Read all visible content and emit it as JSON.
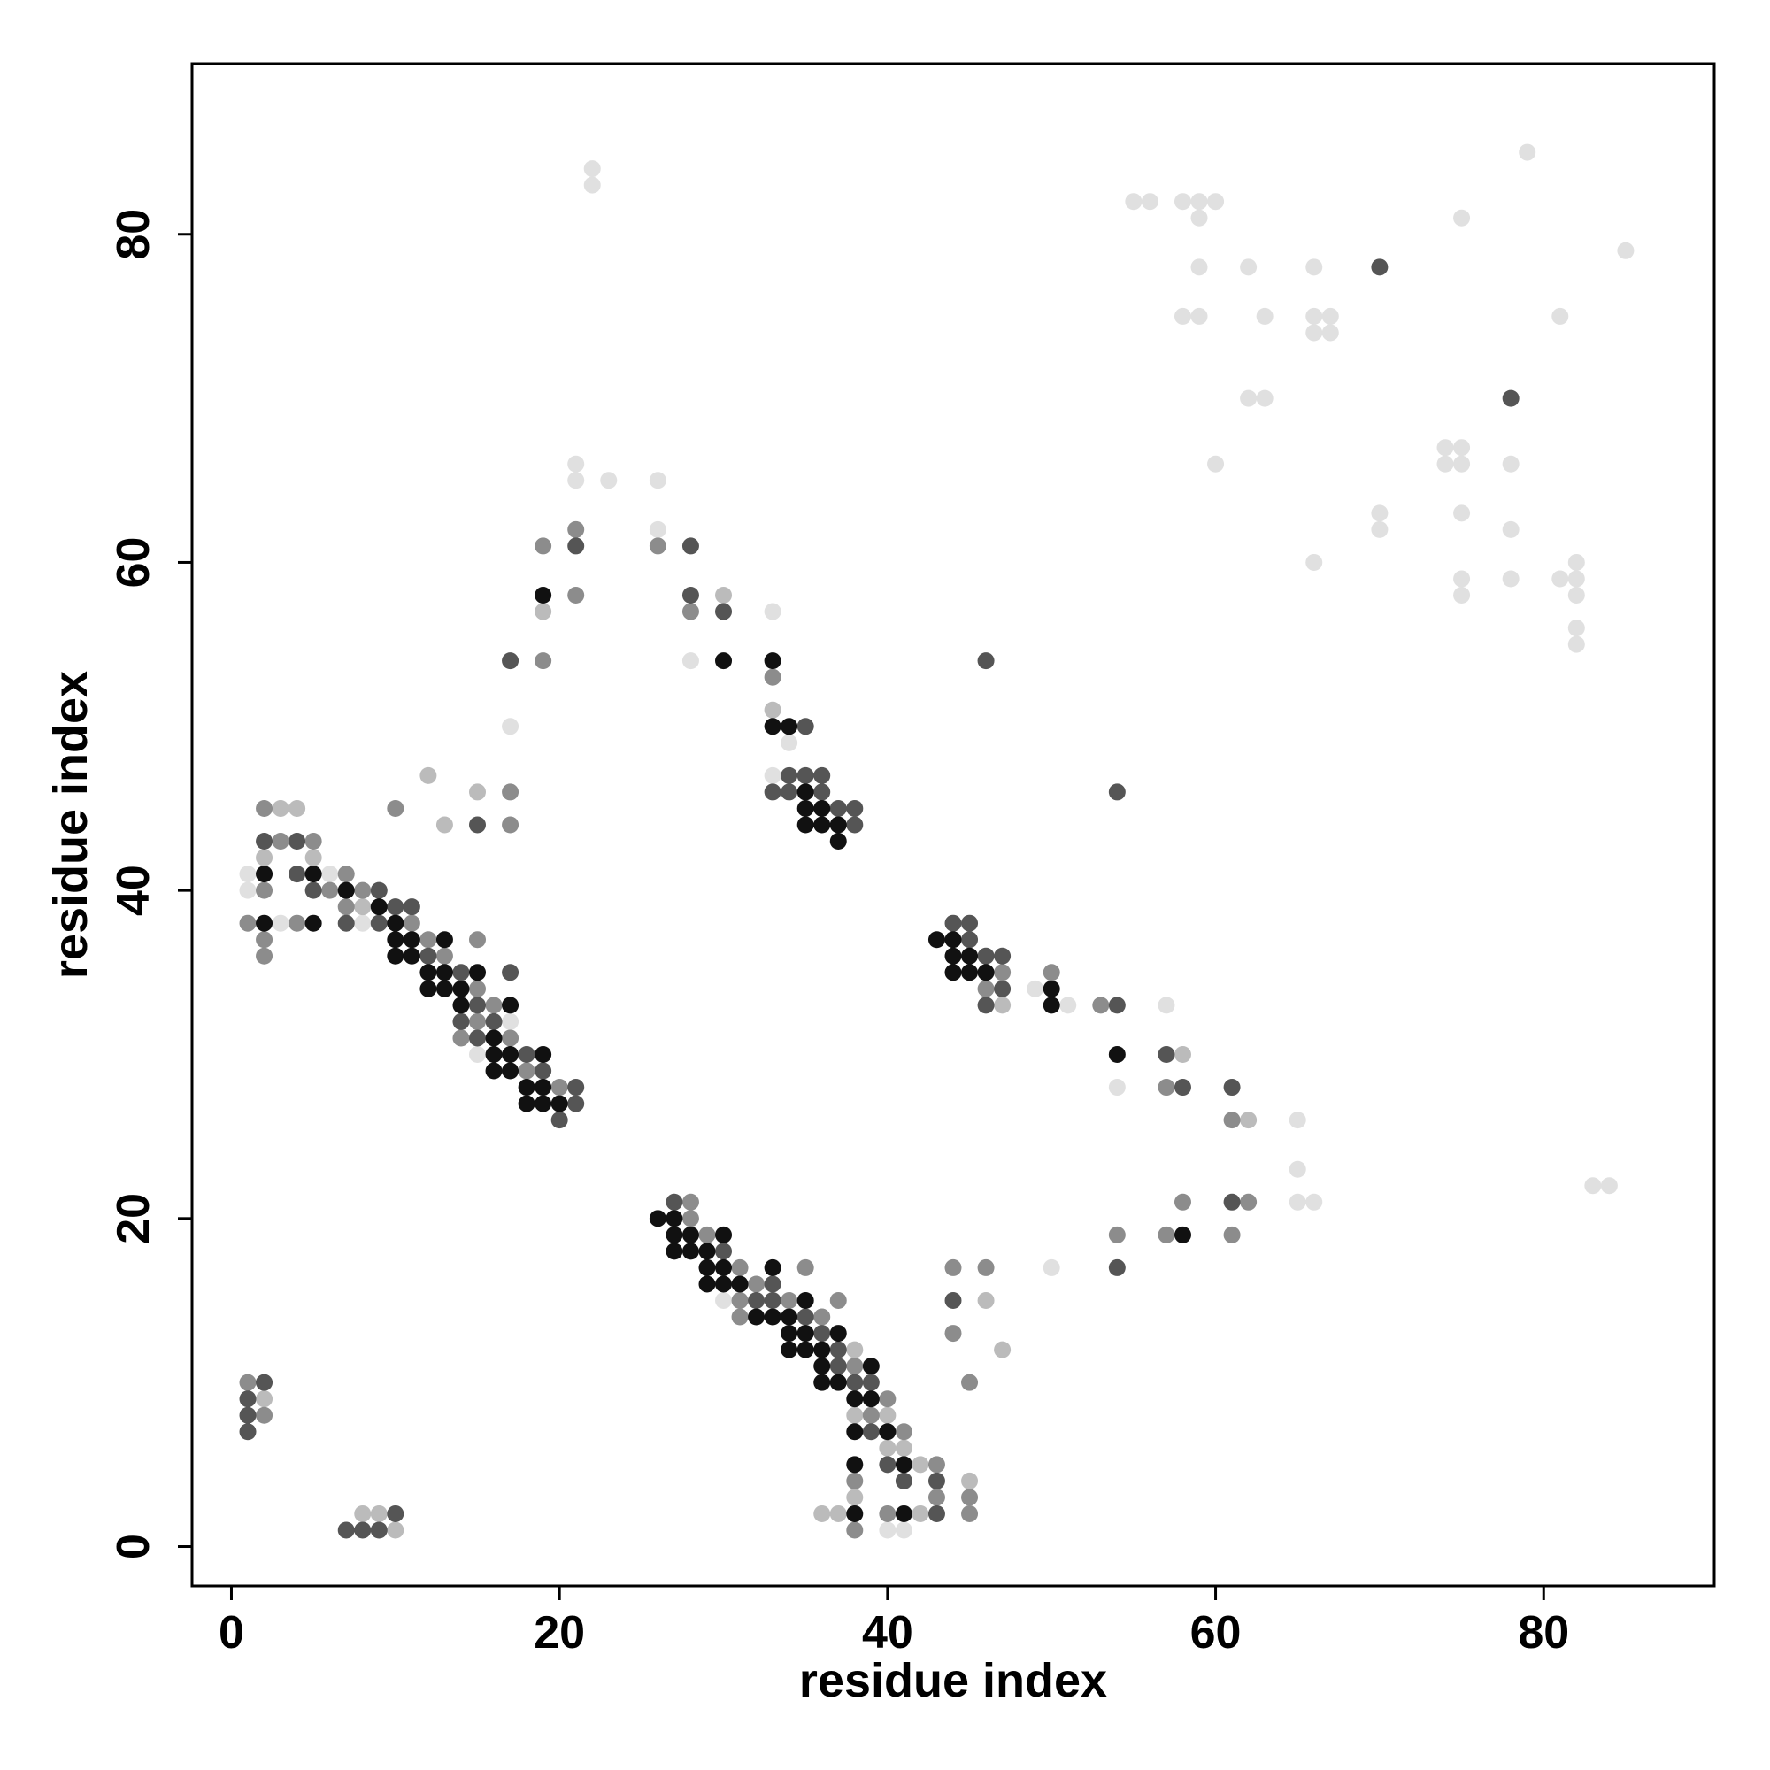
{
  "chart_data": {
    "type": "scatter",
    "xlabel": "residue index",
    "ylabel": "residue index",
    "xlim": [
      -2.4,
      90.4
    ],
    "ylim": [
      -2.4,
      90.4
    ],
    "xticks": [
      0,
      20,
      40,
      60,
      80
    ],
    "yticks": [
      0,
      20,
      40,
      60,
      80
    ],
    "series": [
      {
        "color": "#e0e0e0",
        "x": [
          22,
          22,
          79,
          55,
          56,
          58,
          59,
          60,
          59,
          75,
          85,
          59,
          62,
          66,
          58,
          59,
          63,
          66,
          67,
          66,
          67,
          81,
          62,
          63,
          74,
          75,
          74,
          75,
          60,
          78,
          21,
          21,
          23,
          26,
          70,
          70,
          75,
          78,
          26,
          66,
          82,
          81,
          82,
          75,
          78,
          75,
          82,
          82,
          82,
          33,
          28,
          17,
          34,
          33,
          1,
          6,
          1,
          3,
          8,
          17,
          15,
          49,
          51,
          57,
          54,
          65,
          65,
          83,
          84,
          65,
          66,
          50,
          32,
          30,
          40,
          41
        ],
        "values": [
          84,
          83,
          85,
          82,
          82,
          82,
          82,
          82,
          81,
          81,
          79,
          78,
          78,
          78,
          75,
          75,
          75,
          75,
          75,
          74,
          74,
          75,
          70,
          70,
          67,
          67,
          66,
          66,
          66,
          66,
          66,
          65,
          65,
          65,
          63,
          62,
          63,
          62,
          62,
          60,
          60,
          59,
          59,
          59,
          59,
          58,
          58,
          56,
          55,
          57,
          54,
          50,
          49,
          47,
          41,
          41,
          40,
          38,
          38,
          32,
          30,
          34,
          33,
          33,
          28,
          26,
          23,
          22,
          22,
          21,
          21,
          17,
          15,
          15,
          1,
          1
        ]
      },
      {
        "color": "#bbbbbb",
        "x": [
          30,
          19,
          33,
          3,
          4,
          12,
          15,
          13,
          2,
          5,
          8,
          2,
          38,
          40,
          40,
          41,
          42,
          45,
          38,
          8,
          9,
          10,
          36,
          37,
          42,
          38,
          47,
          46,
          62,
          58,
          47
        ],
        "values": [
          58,
          57,
          51,
          45,
          45,
          47,
          46,
          44,
          42,
          42,
          39,
          9,
          8,
          8,
          6,
          6,
          5,
          4,
          3,
          2,
          2,
          1,
          2,
          2,
          2,
          12,
          12,
          15,
          26,
          30,
          33
        ]
      },
      {
        "color": "#8c8c8c",
        "x": [
          21,
          26,
          19,
          21,
          28,
          33,
          19,
          17,
          10,
          2,
          17,
          3,
          5,
          7,
          2,
          6,
          8,
          7,
          1,
          4,
          11,
          2,
          12,
          15,
          2,
          13,
          47,
          50,
          15,
          46,
          16,
          53,
          15,
          14,
          17,
          18,
          20,
          57,
          61,
          28,
          58,
          62,
          28,
          29,
          54,
          57,
          61,
          31,
          35,
          44,
          46,
          32,
          31,
          34,
          37,
          31,
          36,
          44,
          38,
          45,
          1,
          40,
          2,
          39,
          41,
          43,
          38,
          43,
          45,
          40,
          45,
          38
        ],
        "values": [
          62,
          61,
          61,
          58,
          57,
          53,
          54,
          46,
          45,
          45,
          44,
          43,
          43,
          41,
          40,
          40,
          40,
          39,
          38,
          38,
          38,
          37,
          37,
          37,
          36,
          36,
          35,
          35,
          34,
          34,
          33,
          33,
          32,
          31,
          31,
          29,
          28,
          28,
          26,
          21,
          21,
          21,
          20,
          19,
          19,
          19,
          19,
          17,
          17,
          17,
          17,
          16,
          15,
          15,
          15,
          14,
          14,
          13,
          11,
          10,
          10,
          9,
          8,
          8,
          7,
          5,
          4,
          3,
          3,
          2,
          2,
          1
        ]
      },
      {
        "color": "#555555",
        "x": [
          70,
          78,
          21,
          28,
          28,
          30,
          17,
          46,
          35,
          34,
          35,
          36,
          33,
          34,
          36,
          54,
          37,
          38,
          15,
          38,
          2,
          4,
          4,
          5,
          9,
          10,
          11,
          7,
          9,
          44,
          45,
          45,
          12,
          46,
          47,
          14,
          17,
          47,
          15,
          46,
          54,
          14,
          16,
          15,
          18,
          57,
          19,
          21,
          58,
          61,
          21,
          20,
          27,
          61,
          30,
          54,
          33,
          32,
          33,
          44,
          35,
          36,
          37,
          37,
          38,
          39,
          2,
          1,
          1,
          1,
          39,
          40,
          41,
          43,
          10,
          43,
          7,
          8,
          9
        ],
        "values": [
          78,
          70,
          61,
          61,
          58,
          57,
          54,
          54,
          50,
          47,
          47,
          47,
          46,
          46,
          46,
          46,
          45,
          45,
          44,
          44,
          43,
          43,
          41,
          40,
          40,
          39,
          39,
          38,
          38,
          38,
          38,
          37,
          36,
          36,
          36,
          35,
          35,
          34,
          33,
          33,
          33,
          32,
          32,
          31,
          30,
          30,
          29,
          28,
          28,
          28,
          27,
          26,
          21,
          21,
          18,
          17,
          16,
          15,
          15,
          15,
          14,
          13,
          12,
          11,
          10,
          10,
          10,
          9,
          8,
          7,
          7,
          5,
          4,
          4,
          2,
          2,
          1,
          1,
          1
        ]
      },
      {
        "color": "#111111",
        "x": [
          19,
          30,
          33,
          33,
          34,
          35,
          35,
          36,
          35,
          36,
          37,
          37,
          2,
          5,
          7,
          9,
          2,
          5,
          10,
          10,
          11,
          13,
          43,
          44,
          10,
          11,
          44,
          45,
          12,
          13,
          15,
          44,
          45,
          46,
          12,
          13,
          14,
          50,
          14,
          17,
          50,
          16,
          16,
          17,
          19,
          54,
          16,
          17,
          18,
          19,
          18,
          19,
          20,
          26,
          27,
          27,
          28,
          30,
          58,
          27,
          28,
          29,
          29,
          30,
          33,
          29,
          30,
          31,
          35,
          32,
          33,
          34,
          34,
          35,
          37,
          34,
          35,
          36,
          36,
          39,
          36,
          37,
          38,
          39,
          38,
          40,
          38,
          41,
          38,
          41
        ],
        "values": [
          58,
          54,
          54,
          50,
          50,
          46,
          45,
          45,
          44,
          44,
          44,
          43,
          41,
          41,
          40,
          39,
          38,
          38,
          38,
          37,
          37,
          37,
          37,
          37,
          36,
          36,
          36,
          36,
          35,
          35,
          35,
          35,
          35,
          35,
          34,
          34,
          34,
          34,
          33,
          33,
          33,
          31,
          30,
          30,
          30,
          30,
          29,
          29,
          28,
          28,
          27,
          27,
          27,
          20,
          20,
          19,
          19,
          19,
          19,
          18,
          18,
          18,
          17,
          17,
          17,
          16,
          16,
          16,
          15,
          14,
          14,
          14,
          13,
          13,
          13,
          12,
          12,
          12,
          11,
          11,
          10,
          10,
          9,
          9,
          7,
          7,
          5,
          5,
          2,
          2
        ]
      }
    ]
  }
}
